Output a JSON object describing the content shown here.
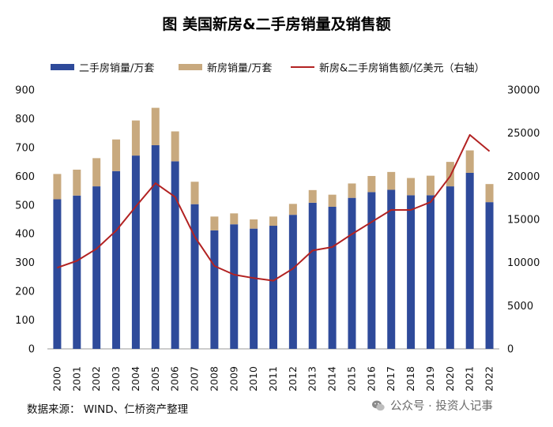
{
  "chart_data": {
    "type": "bar",
    "title": "图  美国新房&二手房销量及销售额",
    "categories": [
      "2000",
      "2001",
      "2002",
      "2003",
      "2004",
      "2005",
      "2006",
      "2007",
      "2008",
      "2009",
      "2010",
      "2011",
      "2012",
      "2013",
      "2014",
      "2015",
      "2016",
      "2017",
      "2018",
      "2019",
      "2020",
      "2021",
      "2022"
    ],
    "series": [
      {
        "name": "二手房销量/万套",
        "type": "bar",
        "stack": "sales",
        "color": "#2E4A9A",
        "values": [
          520,
          533,
          565,
          618,
          672,
          708,
          652,
          503,
          412,
          433,
          418,
          428,
          466,
          508,
          494,
          525,
          545,
          553,
          534,
          534,
          565,
          612,
          510
        ]
      },
      {
        "name": "新房销量/万套",
        "type": "bar",
        "stack": "sales",
        "color": "#C8A97E",
        "values": [
          88,
          90,
          98,
          110,
          122,
          130,
          104,
          78,
          48,
          38,
          32,
          32,
          38,
          44,
          42,
          50,
          56,
          62,
          60,
          68,
          85,
          78,
          63
        ]
      },
      {
        "name": "新房&二手房销售额/亿美元（右轴）",
        "type": "line",
        "axis": "right",
        "color": "#B22222",
        "values": [
          9400,
          10200,
          11600,
          13700,
          16500,
          19200,
          17600,
          13000,
          9600,
          8600,
          8200,
          7900,
          9300,
          11400,
          11800,
          13300,
          14700,
          16100,
          16100,
          17000,
          20000,
          24800,
          22900
        ]
      }
    ],
    "y_left": {
      "min": 0,
      "max": 900,
      "ticks": [
        "0",
        "100",
        "200",
        "300",
        "400",
        "500",
        "600",
        "700",
        "800",
        "900"
      ]
    },
    "y_right": {
      "min": 0,
      "max": 30000,
      "ticks": [
        "0",
        "5000",
        "10000",
        "15000",
        "20000",
        "25000",
        "30000"
      ]
    },
    "legend_position": "top",
    "source": "数据来源：  WIND、仁桥资产整理"
  },
  "watermark": {
    "text": "公众号 · 投资人记事",
    "icon": "wechat-icon"
  }
}
